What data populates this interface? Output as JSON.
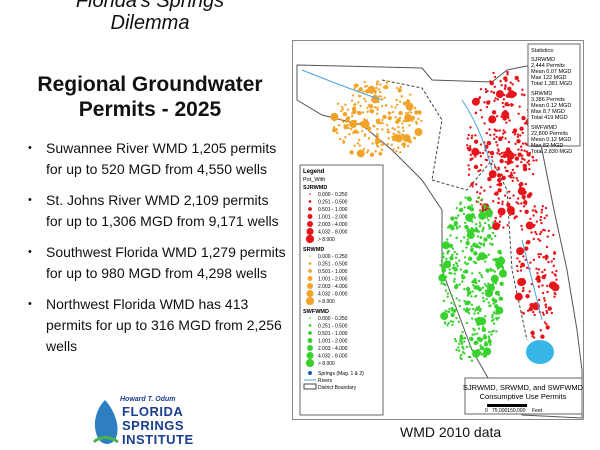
{
  "header": {
    "title_lines": [
      "Florida's Springs",
      "Dilemma"
    ]
  },
  "heading": {
    "lines": [
      "Regional Groundwater",
      "Permits - 2025"
    ]
  },
  "bullets": [
    "Suwannee River WMD 1,205 permits for up to 520 MGD from 4,550 wells",
    "St. Johns River WMD 2,109 permits for up to 1,306 MGD from 9,171 wells",
    "Southwest Florida WMD 1,279 permits for up to 980 MGD from 4,298 wells",
    "Northwest Florida WMD has 413 permits for up to 316 MGD from 2,256 wells"
  ],
  "logo": [
    "Howard T. Odum",
    "FLORIDA",
    "SPRINGS",
    "INSTITUTE"
  ],
  "map": {
    "statistics": {
      "title": "Statistics:",
      "groups": [
        {
          "name": "SJRWMD",
          "lines": [
            "2,444 Permits",
            "Mean 0.07 MGD",
            "Max 122 MGD",
            "Total 1,381 MGD"
          ]
        },
        {
          "name": "SRWMD",
          "lines": [
            "3,386 Permits",
            "Mean 0.12 MGD",
            "Max 8.7 MGD",
            "Total 419 MGD"
          ]
        },
        {
          "name": "SWFWMD",
          "lines": [
            "22,800 Permits",
            "Mean 0.12 MGD",
            "Max 82 MGD",
            "Total 2,830 MGD"
          ]
        }
      ]
    },
    "legend": {
      "title": "Legend",
      "field": "Pot_With",
      "groups": [
        {
          "name": "SJRWMD",
          "color": "#e8141b",
          "items": [
            "0.000 - 0.250",
            "0.251 - 0.500",
            "0.501 - 1.000",
            "1.001 - 2.000",
            "2.003 - 4.000",
            "4.032 - 8.000",
            "> 8.000"
          ]
        },
        {
          "name": "SRWMD",
          "color": "#f2a42a",
          "items": [
            "0.000 - 0.250",
            "0.251 - 0.500",
            "0.501 - 1.000",
            "1.001 - 2.000",
            "2.003 - 4.000",
            "4.032 - 8.000",
            "> 8.000"
          ]
        },
        {
          "name": "SWFWMD",
          "color": "#39d12e",
          "items": [
            "0.000 - 0.250",
            "0.251 - 0.500",
            "0.501 - 1.000",
            "1.001 - 2.000",
            "2.003 - 4.000",
            "4.032 - 8.000",
            "> 8.000"
          ]
        }
      ],
      "extras": [
        "Springs (Mag. 1 & 2)",
        "Rivers",
        "District Boundary"
      ]
    },
    "caption": [
      "SJRWMD, SRWMD, and SWFWMD",
      "Consumptive Use Permits"
    ],
    "scale": [
      "0",
      "75,000150,000",
      "Feet"
    ]
  },
  "caption": "WMD 2010 data"
}
